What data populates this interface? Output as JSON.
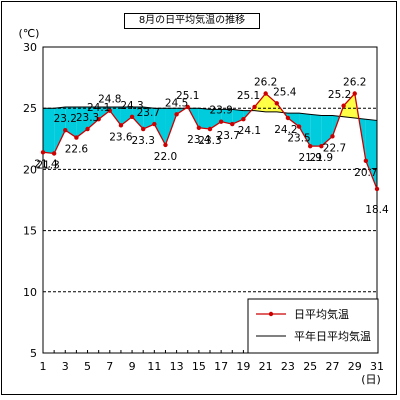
{
  "chart_data": {
    "type": "line",
    "title": "8月の日平均気温の推移",
    "ylabel": "(℃)",
    "xlabel": "(日)",
    "ylim": [
      5,
      30
    ],
    "yticks": [
      5,
      10,
      15,
      20,
      25,
      30
    ],
    "xticks": [
      1,
      3,
      5,
      7,
      9,
      11,
      13,
      15,
      17,
      19,
      21,
      23,
      25,
      27,
      29,
      31
    ],
    "x": [
      1,
      2,
      3,
      4,
      5,
      6,
      7,
      8,
      9,
      10,
      11,
      12,
      13,
      14,
      15,
      16,
      17,
      18,
      19,
      20,
      21,
      22,
      23,
      24,
      25,
      26,
      27,
      28,
      29,
      30,
      31
    ],
    "series": [
      {
        "name": "日平均気温",
        "color": "#cc0000",
        "values": [
          21.4,
          21.3,
          23.2,
          22.6,
          23.3,
          24.1,
          24.8,
          23.6,
          24.3,
          23.3,
          23.7,
          22.0,
          24.5,
          25.1,
          23.4,
          23.3,
          23.9,
          23.7,
          24.1,
          25.1,
          26.2,
          25.4,
          24.2,
          23.5,
          21.9,
          21.9,
          22.7,
          25.2,
          26.2,
          20.7,
          18.4
        ],
        "labels": [
          "21.4",
          "21.3",
          "23.2",
          "22.6",
          "23.3",
          "24.1",
          "24.8",
          "23.6",
          "24.3",
          "23.3",
          "23.7",
          "22.0",
          "24.5",
          "25.1",
          "23.4",
          "23.3",
          "23.9",
          "23.7",
          "24.1",
          "25.1",
          "26.2",
          "25.4",
          "24.2",
          "23.5",
          "21.9",
          "21.9",
          "22.7",
          "25.2",
          "26.2",
          "20.7",
          "18.4"
        ]
      },
      {
        "name": "平年日平均気温",
        "color": "#000000",
        "values": [
          25.0,
          25.0,
          25.1,
          25.1,
          25.1,
          25.1,
          25.1,
          25.1,
          25.1,
          25.1,
          25.0,
          25.0,
          25.0,
          25.0,
          25.0,
          24.9,
          24.9,
          24.9,
          24.8,
          24.8,
          24.7,
          24.7,
          24.6,
          24.6,
          24.5,
          24.4,
          24.4,
          24.3,
          24.2,
          24.1,
          24.0
        ]
      }
    ],
    "fill_below_normal": "#00ccdd",
    "fill_above_normal": "#ffff44",
    "grid": "horizontal dashed",
    "legend_position": "bottom-right"
  }
}
